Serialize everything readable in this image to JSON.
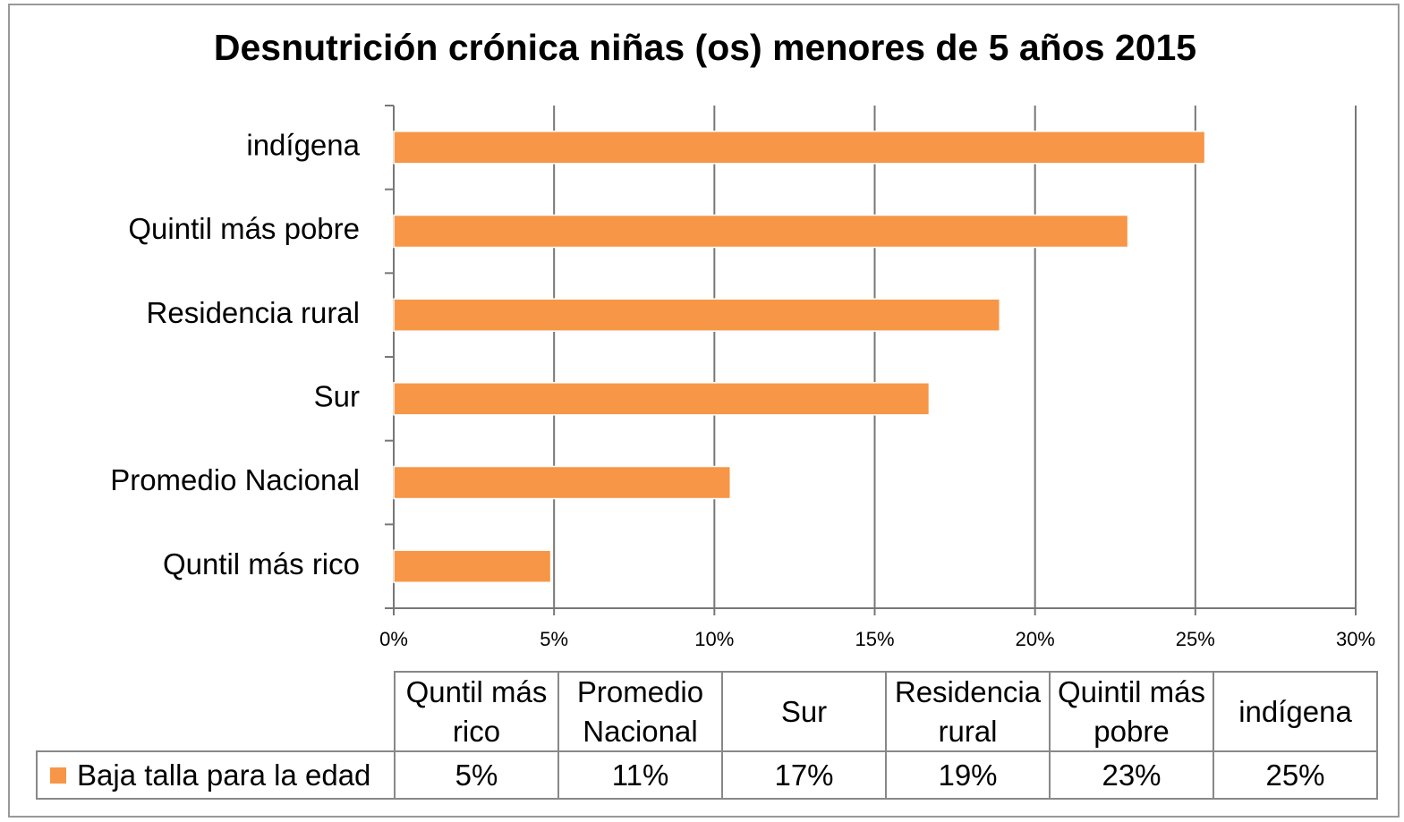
{
  "chart_data": {
    "type": "bar",
    "orientation": "horizontal",
    "title": "Desnutrición crónica niñas (os) menores de 5 años 2015",
    "categories": [
      "Quntil más rico",
      "Promedio Nacional",
      "Sur",
      "Residencia rural",
      "Quintil más pobre",
      "indígena"
    ],
    "series": [
      {
        "name": "Baja talla para la edad",
        "color": "#f79646",
        "values": [
          4.9,
          10.5,
          16.7,
          18.9,
          22.9,
          25.3
        ],
        "value_labels": [
          "5%",
          "11%",
          "17%",
          "19%",
          "23%",
          "25%"
        ]
      }
    ],
    "xlim": [
      0,
      30
    ],
    "xticks": [
      {
        "value": 0,
        "label": "0%"
      },
      {
        "value": 5,
        "label": "5%"
      },
      {
        "value": 10,
        "label": "10%"
      },
      {
        "value": 15,
        "label": "15%"
      },
      {
        "value": 20,
        "label": "20%"
      },
      {
        "value": 25,
        "label": "25%"
      },
      {
        "value": 30,
        "label": "30%"
      }
    ],
    "grid": true,
    "data_table": true
  }
}
